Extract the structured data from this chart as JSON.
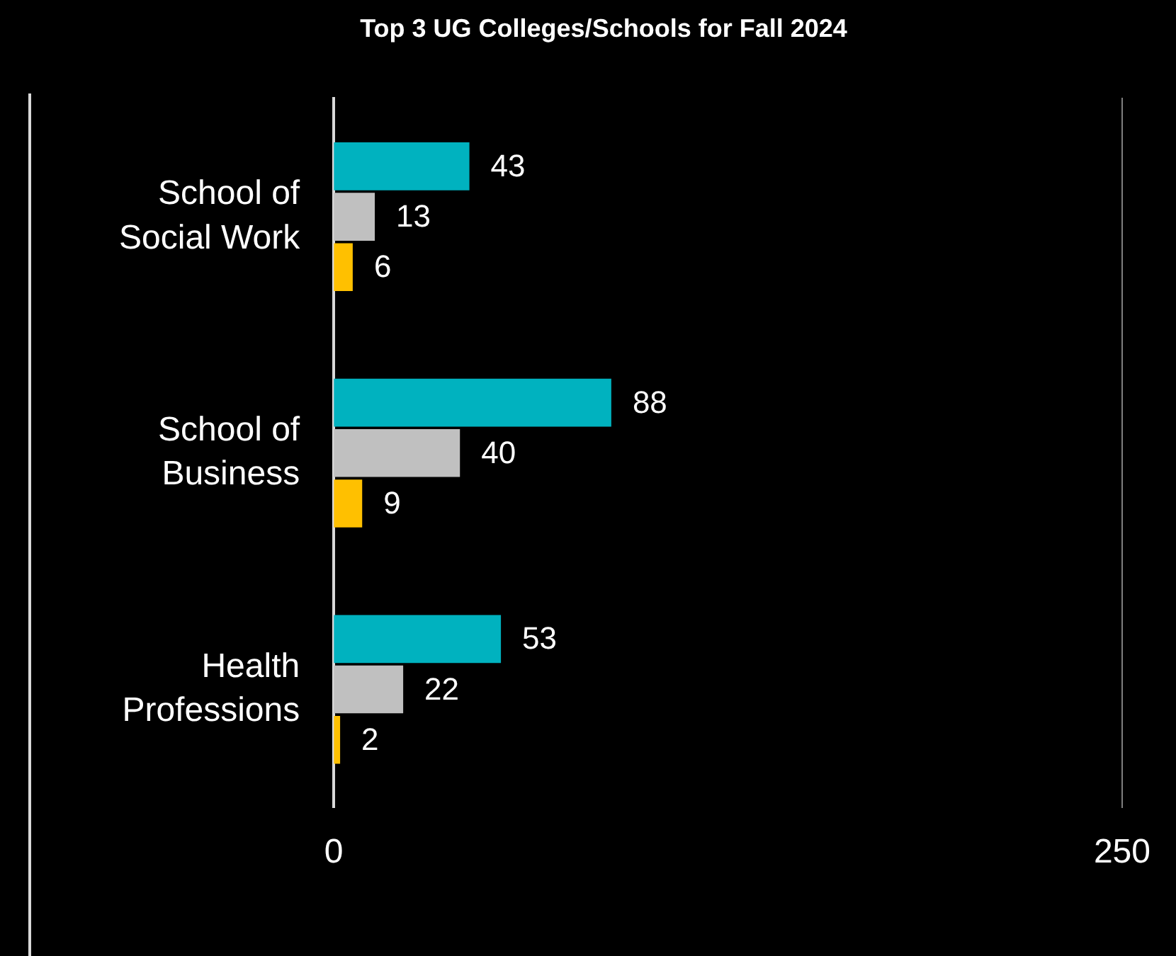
{
  "chart_data": {
    "type": "bar",
    "orientation": "horizontal",
    "title": "Top 3 UG Colleges/Schools for Fall 2024",
    "categories": [
      "School of Social Work",
      "School of Business",
      "Health Professions"
    ],
    "series": [
      {
        "color": "#00b2bf",
        "values": [
          43,
          88,
          53
        ]
      },
      {
        "color": "#c0c0c0",
        "values": [
          13,
          40,
          22
        ]
      },
      {
        "color": "#ffc000",
        "values": [
          6,
          9,
          2
        ]
      }
    ],
    "xlim": [
      0,
      250
    ],
    "xticks": [
      0,
      250
    ],
    "legend": false,
    "data_labels": true
  }
}
